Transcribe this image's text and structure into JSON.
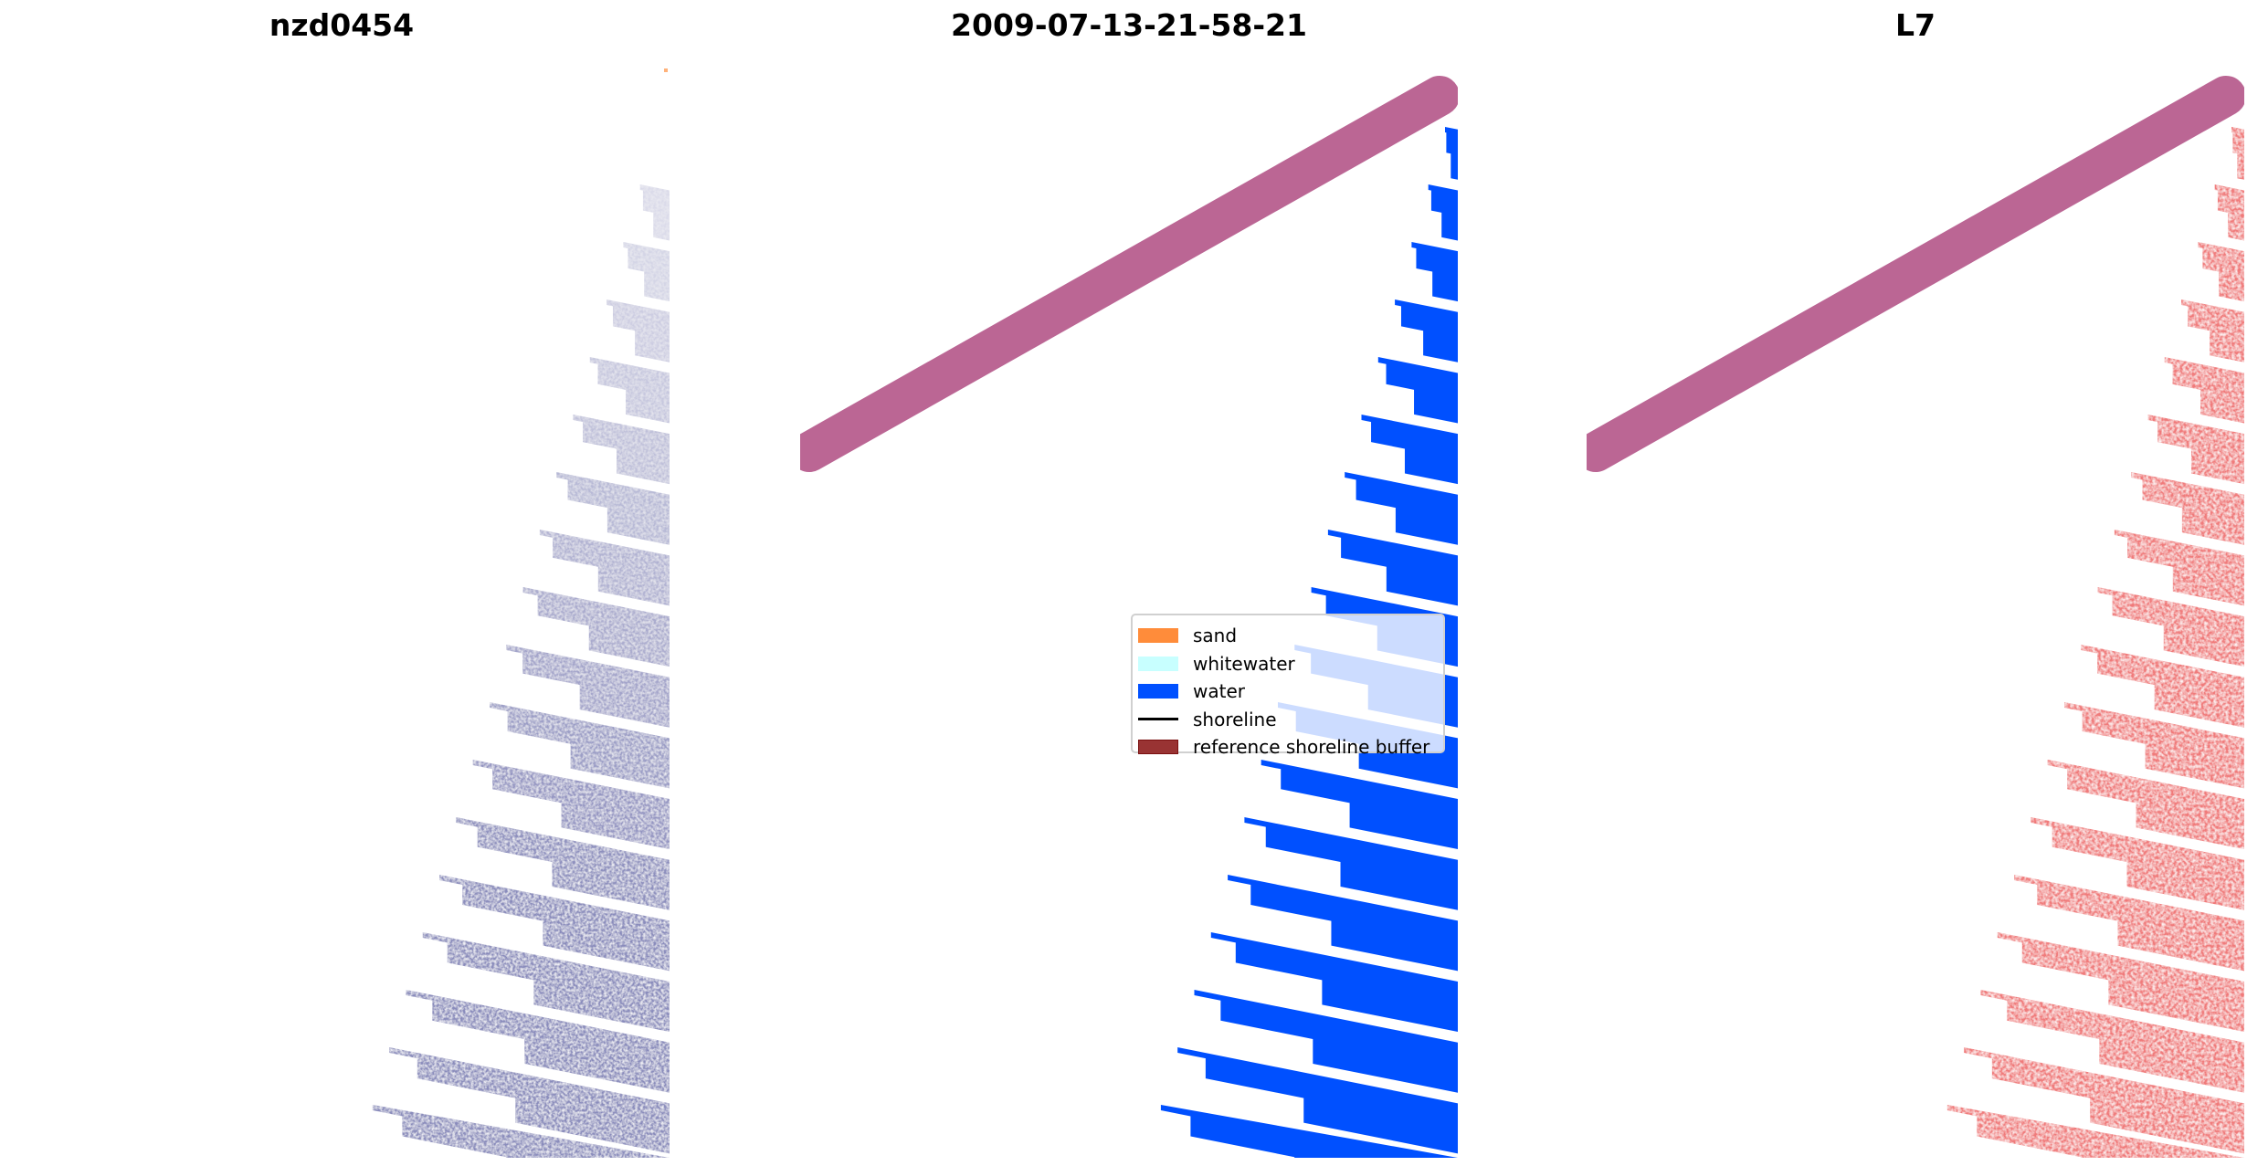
{
  "titles": {
    "left": "nzd0454",
    "middle": "2009-07-13-21-58-21",
    "right": "L7"
  },
  "legend": {
    "items": [
      {
        "label": "sand",
        "color": "#ff8c3a",
        "kind": "patch"
      },
      {
        "label": "whitewater",
        "color": "#c8ffff",
        "kind": "patch"
      },
      {
        "label": "water",
        "color": "#0050ff",
        "kind": "patch"
      },
      {
        "label": "shoreline",
        "color": "#000000",
        "kind": "line"
      },
      {
        "label": "reference shoreline buffer",
        "color": "#8b2a2a",
        "kind": "patch"
      }
    ]
  },
  "colors": {
    "rgb_stripes": "#8a8cbc",
    "water": "#0050ff",
    "index_stripes": "#f07a7a",
    "buffer": "#bb6694"
  }
}
